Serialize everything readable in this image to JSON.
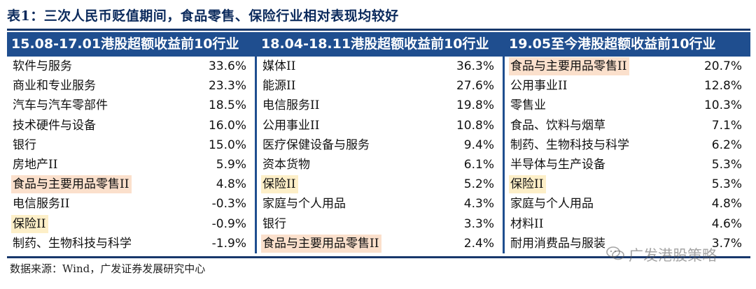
{
  "title": "表1：三次人民币贬值期间，食品零售、保险行业相对表现均较好",
  "colors": {
    "header_bg": "#1f4e8f",
    "highlight_orange": "#fbe0cc",
    "highlight_yellow": "#fdefc8"
  },
  "columns": [
    {
      "header": "15.08-17.01港股超额收益前10行业",
      "rows": [
        {
          "name": "软件与服务",
          "value": "33.6%",
          "hl": ""
        },
        {
          "name": "商业和专业服务",
          "value": "23.3%",
          "hl": ""
        },
        {
          "name": "汽车与汽车零部件",
          "value": "18.5%",
          "hl": ""
        },
        {
          "name": "技术硬件与设备",
          "value": "16.0%",
          "hl": ""
        },
        {
          "name": "银行",
          "value": "15.0%",
          "hl": ""
        },
        {
          "name": "房地产II",
          "value": "5.9%",
          "hl": ""
        },
        {
          "name": "食品与主要用品零售II",
          "value": "4.8%",
          "hl": "orange"
        },
        {
          "name": "电信服务II",
          "value": "-0.3%",
          "hl": ""
        },
        {
          "name": "保险II",
          "value": "-0.9%",
          "hl": "yellow"
        },
        {
          "name": "制药、生物科技与科学",
          "value": "-1.9%",
          "hl": ""
        }
      ]
    },
    {
      "header": "18.04-18.11港股超额收益前10行业",
      "rows": [
        {
          "name": "媒体II",
          "value": "36.3%",
          "hl": ""
        },
        {
          "name": "能源II",
          "value": "27.6%",
          "hl": ""
        },
        {
          "name": "电信服务II",
          "value": "19.8%",
          "hl": ""
        },
        {
          "name": "公用事业II",
          "value": "10.8%",
          "hl": ""
        },
        {
          "name": "医疗保健设备与服务",
          "value": "9.4%",
          "hl": ""
        },
        {
          "name": "资本货物",
          "value": "6.1%",
          "hl": ""
        },
        {
          "name": "保险II",
          "value": "5.2%",
          "hl": "yellow"
        },
        {
          "name": "家庭与个人用品",
          "value": "4.3%",
          "hl": ""
        },
        {
          "name": "银行",
          "value": "3.3%",
          "hl": ""
        },
        {
          "name": "食品与主要用品零售II",
          "value": "2.4%",
          "hl": "orange"
        }
      ]
    },
    {
      "header": "19.05至今港股超额收益前10行业",
      "rows": [
        {
          "name": "食品与主要用品零售II",
          "value": "20.7%",
          "hl": "orange"
        },
        {
          "name": "公用事业II",
          "value": "12.8%",
          "hl": ""
        },
        {
          "name": "零售业",
          "value": "10.3%",
          "hl": ""
        },
        {
          "name": "食品、饮料与烟草",
          "value": "7.1%",
          "hl": ""
        },
        {
          "name": "制药、生物科技与科学",
          "value": "6.2%",
          "hl": ""
        },
        {
          "name": "半导体与生产设备",
          "value": "5.3%",
          "hl": ""
        },
        {
          "name": "保险II",
          "value": "5.3%",
          "hl": "yellow"
        },
        {
          "name": "家庭与个人用品",
          "value": "4.8%",
          "hl": ""
        },
        {
          "name": "材料II",
          "value": "4.6%",
          "hl": ""
        },
        {
          "name": "耐用消费品与服装",
          "value": "3.7%",
          "hl": ""
        }
      ]
    }
  ],
  "source": "数据来源：Wind，广发证券发展研究中心",
  "watermark": {
    "text": "广发港股策略",
    "icon": "wechat-icon"
  }
}
